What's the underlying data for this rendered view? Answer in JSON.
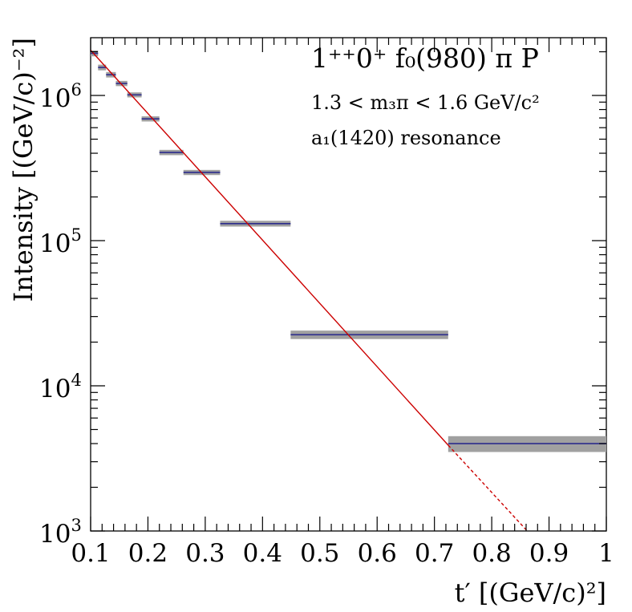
{
  "chart_data": {
    "type": "scatter",
    "title": "",
    "xlabel": "t′ [(GeV/c)²]",
    "ylabel": "Intensity [(GeV/c)⁻²]",
    "x_scale": "linear",
    "y_scale": "log",
    "xlim": [
      0.1,
      1.0
    ],
    "ylim": [
      1000,
      2500000
    ],
    "x_ticks": [
      "0.1",
      "0.2",
      "0.3",
      "0.4",
      "0.5",
      "0.6",
      "0.7",
      "0.8",
      "0.9",
      "1"
    ],
    "y_ticks": [
      {
        "base": "10",
        "exp": "3"
      },
      {
        "base": "10",
        "exp": "4"
      },
      {
        "base": "10",
        "exp": "5"
      },
      {
        "base": "10",
        "exp": "6"
      }
    ],
    "annotations": {
      "line1": "1⁺⁺0⁺ f₀(980) π P",
      "line2": "1.3 < m₃π < 1.6 GeV/c²",
      "line3": "a₁(1420) resonance"
    },
    "grid": false,
    "legend": "none",
    "colors": {
      "data": "#2c2c8c",
      "band": "#a0a0a0",
      "fit": "#cc0000"
    },
    "bins": [
      {
        "x_low": 0.1,
        "x_high": 0.113,
        "y": 1950000,
        "err": 90000
      },
      {
        "x_low": 0.113,
        "x_high": 0.127,
        "y": 1560000,
        "err": 70000
      },
      {
        "x_low": 0.127,
        "x_high": 0.144,
        "y": 1390000,
        "err": 60000
      },
      {
        "x_low": 0.144,
        "x_high": 0.164,
        "y": 1210000,
        "err": 50000
      },
      {
        "x_low": 0.164,
        "x_high": 0.189,
        "y": 1010000,
        "err": 40000
      },
      {
        "x_low": 0.189,
        "x_high": 0.22,
        "y": 690000,
        "err": 28000
      },
      {
        "x_low": 0.22,
        "x_high": 0.262,
        "y": 405000,
        "err": 17000
      },
      {
        "x_low": 0.262,
        "x_high": 0.326,
        "y": 295000,
        "err": 12000
      },
      {
        "x_low": 0.326,
        "x_high": 0.449,
        "y": 131000,
        "err": 6000
      },
      {
        "x_low": 0.449,
        "x_high": 0.724,
        "y": 22500,
        "err": 1500
      },
      {
        "x_low": 0.724,
        "x_high": 1.0,
        "y": 4000,
        "err": 500
      }
    ],
    "fit": {
      "form": "exponential",
      "solid": [
        [
          0.1,
          2050000
        ],
        [
          0.724,
          3900
        ]
      ],
      "dashed": [
        [
          0.724,
          3900
        ],
        [
          0.862,
          1000
        ]
      ]
    }
  }
}
